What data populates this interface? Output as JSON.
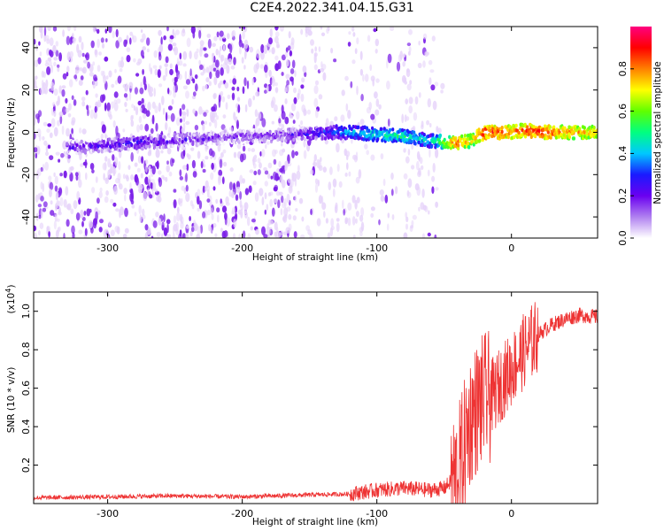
{
  "title": "C2E4.2022.341.04.15.G31",
  "colors": {
    "snr_line": "#ee3333",
    "axis": "#000000",
    "spectrogram_hi": "#7b1fe8",
    "spectrogram_lo": "#e6d3fa"
  },
  "chart_data": [
    {
      "type": "heatmap",
      "name": "spectrogram",
      "xlabel": "Height of straight line (km)",
      "ylabel": "Frequency (Hz)",
      "xlim": [
        -355,
        64
      ],
      "ylim": [
        -50,
        50
      ],
      "x_ticks": [
        -300,
        -200,
        -100,
        0
      ],
      "y_ticks": [
        -40,
        -20,
        0,
        20,
        40
      ],
      "x_tick_labels": [
        "-300",
        "-200",
        "-100",
        "0"
      ],
      "y_tick_labels": [
        "-40",
        "-20",
        "0",
        "20",
        "40"
      ],
      "colorbar": {
        "label": "Normalized spectral amplitude",
        "range": [
          0,
          1
        ],
        "ticks": [
          0.0,
          0.2,
          0.4,
          0.6,
          0.8
        ],
        "tick_labels": [
          "0.0",
          "0.2",
          "0.4",
          "0.6",
          "0.8"
        ],
        "colormap": [
          "#ffffff",
          "#b080f0",
          "#6a00f0",
          "#1a1aff",
          "#00c8ff",
          "#00ff80",
          "#60ff00",
          "#ffff00",
          "#ff8000",
          "#ff0000",
          "#ff0080"
        ]
      },
      "signal_trace": {
        "x": [
          -320,
          -280,
          -200,
          -160,
          -140,
          -120,
          -100,
          -80,
          -60,
          -40,
          -30,
          -20,
          -10,
          0,
          10,
          20,
          40,
          64
        ],
        "freq": [
          -7,
          -5,
          -2,
          -1,
          0,
          0,
          -1,
          -2,
          -4,
          -5,
          -4,
          0,
          0,
          0,
          1,
          0,
          0,
          0
        ],
        "amplitude": [
          0.2,
          0.25,
          0.15,
          0.2,
          0.3,
          0.4,
          0.45,
          0.5,
          0.4,
          0.85,
          0.7,
          0.9,
          0.85,
          0.8,
          0.85,
          0.9,
          0.8,
          0.75
        ]
      }
    },
    {
      "type": "line",
      "name": "snr",
      "xlabel": "Height of straight line (km)",
      "ylabel": "SNR (10 * v/v)",
      "y_multiplier_label": "(x10",
      "y_multiplier_exp": "4",
      "y_multiplier_close": ")",
      "xlim": [
        -355,
        64
      ],
      "ylim": [
        0.0,
        1.1
      ],
      "x_ticks": [
        -300,
        -200,
        -100,
        0
      ],
      "y_ticks": [
        0.2,
        0.4,
        0.6,
        0.8,
        1.0
      ],
      "x_tick_labels": [
        "-300",
        "-200",
        "-100",
        "0"
      ],
      "y_tick_labels": [
        "0.2",
        "0.4",
        "0.6",
        "0.8",
        "1.0"
      ],
      "series": [
        {
          "x": [
            -355,
            -300,
            -250,
            -200,
            -150,
            -120,
            -100,
            -80,
            -60,
            -50,
            -40,
            -35,
            -30,
            -25,
            -20,
            -15,
            -10,
            -5,
            0,
            10,
            20,
            30,
            40,
            50,
            64
          ],
          "y": [
            0.03,
            0.035,
            0.04,
            0.035,
            0.045,
            0.05,
            0.07,
            0.08,
            0.07,
            0.08,
            0.15,
            0.3,
            0.45,
            0.5,
            0.55,
            0.55,
            0.6,
            0.65,
            0.7,
            0.8,
            0.88,
            0.93,
            0.96,
            0.98,
            0.97
          ]
        }
      ]
    }
  ]
}
